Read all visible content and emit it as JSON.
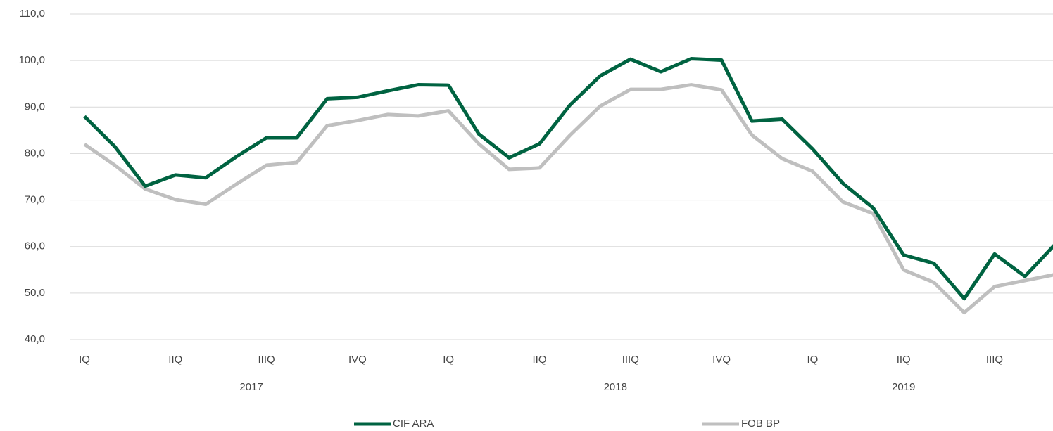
{
  "chart_data": {
    "type": "line",
    "categories": [
      "IQ",
      null,
      null,
      "IIQ",
      null,
      null,
      "IIIQ",
      null,
      null,
      "IVQ",
      null,
      null,
      "IQ",
      null,
      null,
      "IIQ",
      null,
      null,
      "IIIQ",
      null,
      null,
      "IVQ",
      null,
      null,
      "IQ",
      null,
      null,
      "IIQ",
      null,
      null,
      "IIIQ",
      null,
      null
    ],
    "years": [
      "2017",
      "2018",
      "2019"
    ],
    "series": [
      {
        "name": "CIF ARA",
        "color": "#006341",
        "values": [
          88.0,
          81.5,
          73.0,
          75.4,
          74.8,
          79.3,
          83.4,
          83.4,
          91.8,
          92.1,
          93.5,
          94.8,
          94.7,
          84.2,
          79.1,
          82.1,
          90.4,
          96.7,
          100.3,
          97.6,
          100.4,
          100.1,
          87.0,
          87.4,
          81.0,
          73.6,
          68.3,
          58.2,
          56.4,
          48.8,
          58.4,
          53.6,
          60.5
        ]
      },
      {
        "name": "FOB BP",
        "color": "#bfbfbf",
        "values": [
          82.0,
          77.5,
          72.4,
          70.1,
          69.1,
          73.4,
          77.5,
          78.1,
          86.0,
          87.1,
          88.4,
          88.1,
          89.2,
          82.1,
          76.6,
          76.9,
          83.9,
          90.2,
          93.8,
          93.8,
          94.8,
          93.7,
          84.0,
          78.9,
          76.2,
          69.6,
          67.1,
          55.0,
          52.3,
          45.8,
          51.4,
          52.7,
          54.0
        ]
      }
    ],
    "ylim": [
      40,
      110
    ],
    "yticks": [
      {
        "value": 40,
        "label": "40,0"
      },
      {
        "value": 50,
        "label": "50,0"
      },
      {
        "value": 60,
        "label": "60,0"
      },
      {
        "value": 70,
        "label": "70,0"
      },
      {
        "value": 80,
        "label": "80,0"
      },
      {
        "value": 90,
        "label": "90,0"
      },
      {
        "value": 100,
        "label": "100,0"
      },
      {
        "value": 110,
        "label": "110,0"
      }
    ],
    "grid": true,
    "legend": "bottom"
  }
}
